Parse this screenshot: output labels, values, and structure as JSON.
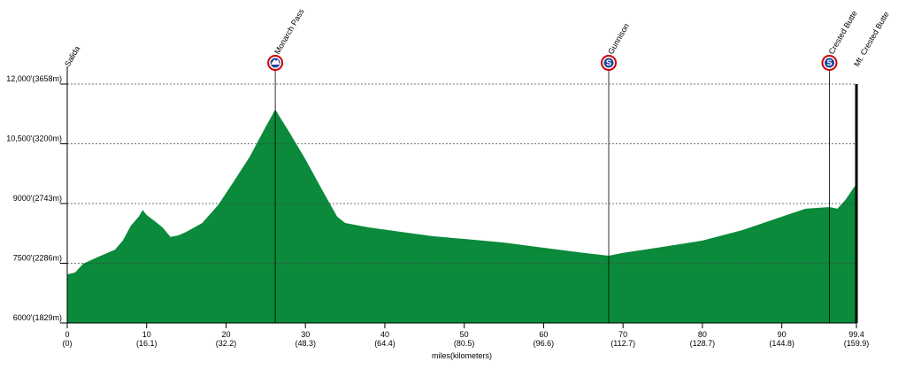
{
  "chart_data": {
    "type": "area",
    "color": "#0a8a3a",
    "x": [
      0,
      1,
      2,
      4,
      6,
      7,
      8,
      9,
      9.5,
      10,
      11,
      12,
      13,
      14,
      15,
      17,
      19,
      21,
      23,
      25,
      26.2,
      28,
      30,
      32,
      34,
      35,
      38,
      42,
      46,
      50,
      55,
      60,
      65,
      68.2,
      70,
      75,
      80,
      85,
      90,
      93,
      96,
      97,
      98,
      99,
      99.4
    ],
    "values": [
      7220,
      7270,
      7490,
      7670,
      7840,
      8070,
      8440,
      8670,
      8840,
      8710,
      8560,
      8400,
      8160,
      8200,
      8290,
      8510,
      8960,
      9560,
      10180,
      10930,
      11360,
      10780,
      10110,
      9380,
      8670,
      8510,
      8400,
      8290,
      8180,
      8110,
      8020,
      7890,
      7760,
      7690,
      7760,
      7910,
      8070,
      8330,
      8670,
      8870,
      8910,
      8870,
      9090,
      9380,
      9490
    ],
    "xlim": [
      0,
      99.4
    ],
    "ylim": [
      6000,
      12000
    ],
    "xticks": [
      0,
      10,
      20,
      30,
      40,
      50,
      60,
      70,
      80,
      90,
      99.4
    ],
    "xtick_km_labels": [
      "(0)",
      "(16.1)",
      "(32.2)",
      "(48.3)",
      "(64.4)",
      "(80.5)",
      "(96.6)",
      "(112.7)",
      "(128.7)",
      "(144.8)",
      "(159.9)"
    ],
    "yticks": [
      {
        "value": 6000,
        "label": "6000'(1829m)"
      },
      {
        "value": 7500,
        "label": "7500'(2286m)"
      },
      {
        "value": 9000,
        "label": "9000'(2743m)"
      },
      {
        "value": 10500,
        "label": "10,500'(3200m)"
      },
      {
        "value": 12000,
        "label": "12,000'(3658m)"
      }
    ],
    "x_label": "miles(kilometers)",
    "grid": true,
    "annotations": [
      {
        "x": 0,
        "label": "Salida"
      },
      {
        "x": 26.2,
        "label": "Monarch Pass",
        "icon": "climb"
      },
      {
        "x": 68.2,
        "label": "Gunnison",
        "icon": "sprint"
      },
      {
        "x": 96,
        "label": "Crested Butte",
        "icon": "sprint"
      },
      {
        "x": 99.4,
        "label": "Mt. Crested Butte"
      }
    ]
  }
}
